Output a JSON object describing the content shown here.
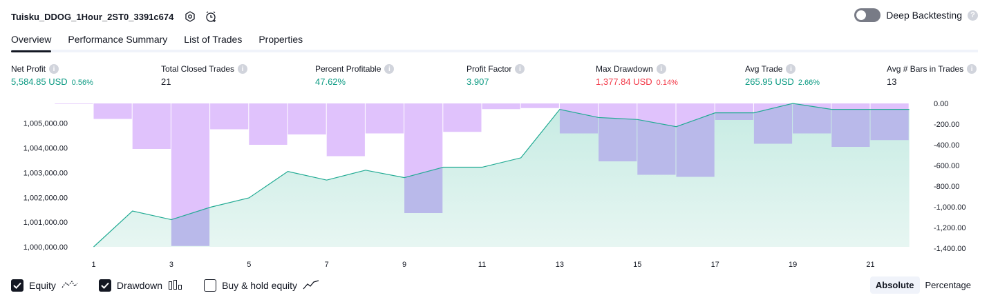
{
  "header": {
    "strategy_name": "Tuisku_DDOG_1Hour_2ST0_3391c674",
    "deep_backtesting_label": "Deep Backtesting",
    "deep_backtesting_on": false
  },
  "tabs": [
    {
      "label": "Overview",
      "active": true
    },
    {
      "label": "Performance Summary",
      "active": false
    },
    {
      "label": "List of Trades",
      "active": false
    },
    {
      "label": "Properties",
      "active": false
    }
  ],
  "metrics": {
    "net_profit": {
      "label": "Net Profit",
      "value": "5,584.85 USD",
      "pct": "0.56%"
    },
    "total_closed_trades": {
      "label": "Total Closed Trades",
      "value": "21"
    },
    "percent_profitable": {
      "label": "Percent Profitable",
      "value": "47.62%"
    },
    "profit_factor": {
      "label": "Profit Factor",
      "value": "3.907"
    },
    "max_drawdown": {
      "label": "Max Drawdown",
      "value": "1,377.84 USD",
      "pct": "0.14%"
    },
    "avg_trade": {
      "label": "Avg Trade",
      "value": "265.95 USD",
      "pct": "2.66%"
    },
    "avg_bars": {
      "label": "Avg # Bars in Trades",
      "value": "13"
    }
  },
  "chart_data": {
    "type": "bar",
    "x_ticks": [
      "1",
      "3",
      "5",
      "7",
      "9",
      "11",
      "13",
      "15",
      "17",
      "19",
      "21"
    ],
    "left_axis_ticks": [
      "1,000,000.00",
      "1,001,000.00",
      "1,002,000.00",
      "1,003,000.00",
      "1,004,000.00",
      "1,005,000.00"
    ],
    "right_axis_ticks": [
      "0.00",
      "-200.00",
      "-400.00",
      "-600.00",
      "-800.00",
      "-1,000.00",
      "-1,200.00",
      "-1,400.00"
    ],
    "left_ylim": [
      1000000,
      1005800
    ],
    "right_ylim": [
      -1400,
      0
    ],
    "xlim": [
      1,
      23
    ],
    "equity": {
      "x": [
        1,
        2,
        3,
        4,
        5,
        6,
        7,
        8,
        9,
        10,
        11,
        12,
        13,
        14,
        15,
        16,
        17,
        18,
        19,
        20,
        21,
        22
      ],
      "values": [
        1000000,
        1001450,
        1001100,
        1001600,
        1001980,
        1003050,
        1002700,
        1003100,
        1002800,
        1003220,
        1003220,
        1003600,
        1005560,
        1005230,
        1005150,
        1004860,
        1005420,
        1005420,
        1005800,
        1005560,
        1005560,
        1005560
      ]
    },
    "drawdown": {
      "x": [
        1,
        2,
        3,
        4,
        5,
        6,
        7,
        8,
        9,
        10,
        11,
        12,
        13,
        14,
        15,
        16,
        17,
        18,
        19,
        20,
        21,
        22
      ],
      "values": [
        -5,
        -150,
        -440,
        -1378,
        -250,
        -400,
        -300,
        -510,
        -290,
        -1060,
        -275,
        -55,
        -45,
        -290,
        -560,
        -690,
        -710,
        -160,
        -390,
        -290,
        -420,
        -355
      ]
    },
    "colors": {
      "equity_line": "#22ab94",
      "equity_fill": "#cfeee7",
      "drawdown_bar": "#e0c2fc",
      "drawdown_overlap": "#b9b9ea"
    }
  },
  "legend": {
    "equity": {
      "label": "Equity",
      "checked": true
    },
    "drawdown": {
      "label": "Drawdown",
      "checked": true
    },
    "buy_hold": {
      "label": "Buy & hold equity",
      "checked": false
    }
  },
  "scale": {
    "absolute_label": "Absolute",
    "percentage_label": "Percentage",
    "selected": "Absolute"
  }
}
